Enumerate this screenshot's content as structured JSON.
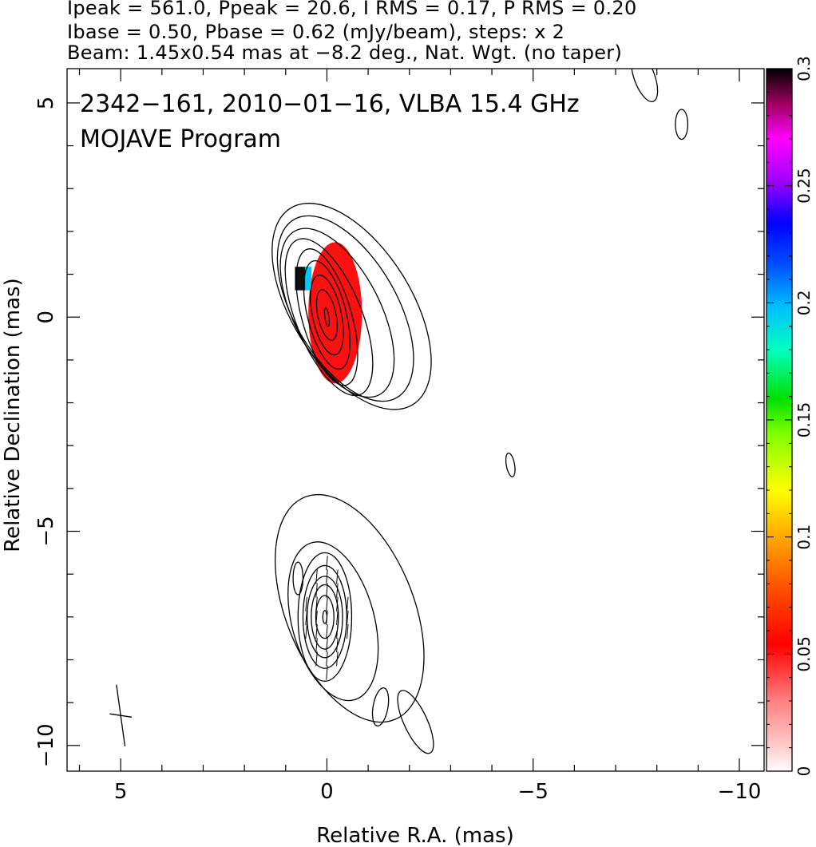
{
  "header": {
    "line1": "Ipeak = 561.0, Ppeak = 20.6, I RMS = 0.17, P RMS = 0.20",
    "line2": "Ibase = 0.50, Pbase = 0.62 (mJy/beam), steps: x 2",
    "line3": "Beam: 1.45x0.54 mas at −8.2 deg., Nat. Wgt. (no taper)"
  },
  "annotations": {
    "title": "2342−161, 2010−01−16, VLBA 15.4 GHz",
    "program": "MOJAVE Program"
  },
  "chart_data": {
    "type": "heatmap",
    "xlabel": "Relative R.A. (mas)",
    "ylabel": "Relative Declination (mas)",
    "xlim": [
      6.3,
      -10.6
    ],
    "ylim": [
      -10.6,
      5.8
    ],
    "x_axis_reversed": true,
    "x_ticks": [
      5,
      0,
      -5,
      -10
    ],
    "x_tick_labels": [
      "5",
      "0",
      "−5",
      "−10"
    ],
    "y_ticks": [
      5,
      0,
      -5,
      -10
    ],
    "y_tick_labels": [
      "5",
      "0",
      "−5",
      "−10"
    ],
    "colorbar": {
      "min": 0,
      "max": 0.3,
      "ticks": [
        0,
        0.05,
        0.1,
        0.15,
        0.2,
        0.25,
        0.3
      ],
      "tick_labels": [
        "0",
        "0.05",
        "0.1",
        "0.15",
        "0.2",
        "0.25",
        "0.3"
      ],
      "orientation": "vertical",
      "position": "right"
    },
    "beam": {
      "major_mas": 1.45,
      "minor_mas": 0.54,
      "pa_deg": -8.2,
      "center": [
        5.0,
        -9.3
      ]
    },
    "contour_components": [
      {
        "center": [
          0.0,
          0.0
        ],
        "levels": [
          {
            "rx": 0.05,
            "ry": 0.22,
            "rot": -8,
            "dx": 0.0,
            "dy": 0.0
          },
          {
            "rx": 0.22,
            "ry": 0.6,
            "rot": -12,
            "dx": 0.0,
            "dy": 0.05
          },
          {
            "rx": 0.35,
            "ry": 0.95,
            "rot": -12,
            "dx": 0.0,
            "dy": 0.05
          },
          {
            "rx": 0.47,
            "ry": 1.3,
            "rot": -14,
            "dx": 0.0,
            "dy": 0.05
          },
          {
            "rx": 0.6,
            "ry": 1.65,
            "rot": -16,
            "dx": 0.0,
            "dy": 0.0
          },
          {
            "rx": 0.8,
            "ry": 1.95,
            "rot": -22,
            "dx": -0.05,
            "dy": 0.0
          },
          {
            "rx": 1.05,
            "ry": 2.15,
            "rot": -27,
            "dx": -0.25,
            "dy": 0.1
          },
          {
            "rx": 1.25,
            "ry": 2.4,
            "rot": -30,
            "dx": -0.45,
            "dy": 0.2
          },
          {
            "rx": 1.45,
            "ry": 2.7,
            "rot": -32,
            "dx": -0.6,
            "dy": 0.25
          }
        ]
      },
      {
        "center": [
          0.05,
          -7.0
        ],
        "levels": [
          {
            "rx": 0.05,
            "ry": 0.15,
            "rot": 0,
            "dx": 0.0,
            "dy": 0.0
          },
          {
            "rx": 0.22,
            "ry": 0.5,
            "rot": 0,
            "dx": 0.0,
            "dy": 0.0
          },
          {
            "rx": 0.33,
            "ry": 0.75,
            "rot": 0,
            "dx": 0.0,
            "dy": 0.0
          },
          {
            "rx": 0.43,
            "ry": 0.95,
            "rot": 0,
            "dx": 0.0,
            "dy": 0.0
          },
          {
            "rx": 0.53,
            "ry": 1.2,
            "rot": 0,
            "dx": 0.0,
            "dy": 0.0
          },
          {
            "rx": 0.65,
            "ry": 1.5,
            "rot": 0,
            "dx": 0.0,
            "dy": 0.0
          },
          {
            "rx": 1.0,
            "ry": 1.9,
            "rot": -15,
            "dx": -0.2,
            "dy": -0.1
          },
          {
            "rx": 1.55,
            "ry": 2.8,
            "rot": -22,
            "dx": -0.6,
            "dy": 0.2
          }
        ]
      }
    ],
    "small_contours": [
      {
        "x": -7.7,
        "y": 5.6,
        "rx": 0.25,
        "ry": 0.6,
        "rot": -20
      },
      {
        "x": -8.6,
        "y": 4.5,
        "rx": 0.15,
        "ry": 0.35,
        "rot": 0
      },
      {
        "x": -4.45,
        "y": -3.45,
        "rx": 0.1,
        "ry": 0.28,
        "rot": -10
      },
      {
        "x": -1.3,
        "y": -9.1,
        "rx": 0.18,
        "ry": 0.45,
        "rot": 10
      },
      {
        "x": -2.15,
        "y": -9.45,
        "rx": 0.28,
        "ry": 0.8,
        "rot": -25
      },
      {
        "x": 0.7,
        "y": -6.1,
        "rx": 0.12,
        "ry": 0.38,
        "rot": 0
      }
    ],
    "color_region": {
      "center": [
        -0.2,
        0.1
      ],
      "rx": 0.65,
      "ry": 1.65,
      "value": 0.05
    },
    "color_patch": {
      "center": [
        0.65,
        0.9
      ],
      "w": 0.25,
      "h": 0.55,
      "value": 0.29
    },
    "polarization_ticks": {
      "center": [
        0.0,
        -7.0
      ],
      "angle_deg": 95
    }
  }
}
